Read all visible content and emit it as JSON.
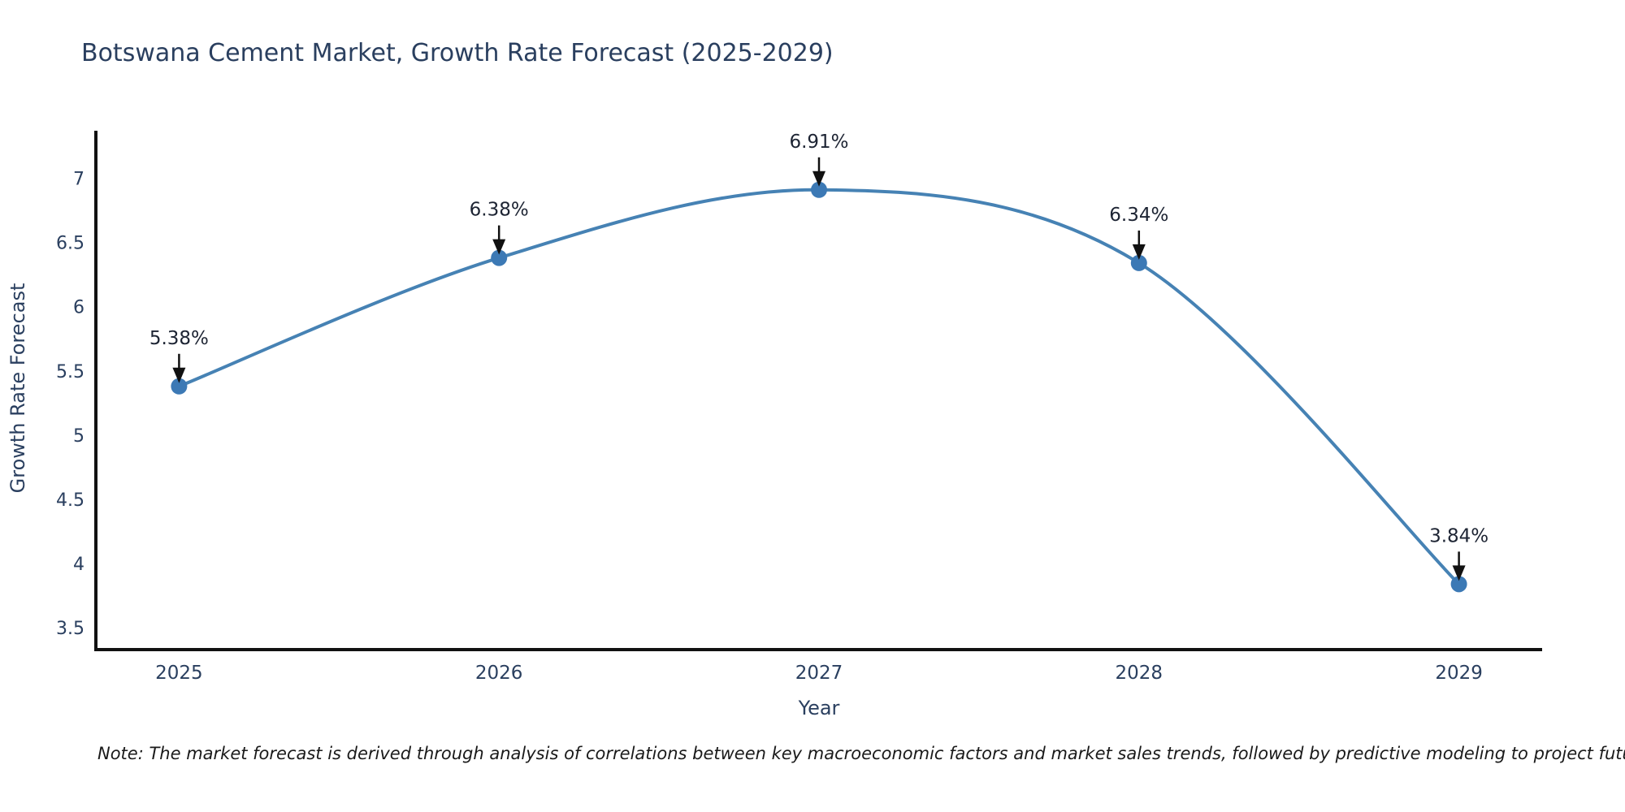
{
  "page": {
    "note": "Note: The market forecast is derived through analysis of correlations between key macroeconomic factors and market sales trends, followed by predictive modeling to project future sales"
  },
  "chart_data": {
    "type": "line",
    "title": "Botswana Cement Market, Growth Rate Forecast (2025-2029)",
    "xlabel": "Year",
    "ylabel": "Growth Rate Forecast",
    "x": [
      2025,
      2026,
      2027,
      2028,
      2029
    ],
    "series": [
      {
        "name": "Growth Rate Forecast",
        "values": [
          5.38,
          6.38,
          6.91,
          6.34,
          3.84
        ]
      }
    ],
    "point_labels": [
      "5.38%",
      "6.38%",
      "6.91%",
      "6.34%",
      "3.84%"
    ],
    "xticks": [
      "2025",
      "2026",
      "2027",
      "2028",
      "2029"
    ],
    "xtick_values": [
      2025,
      2026,
      2027,
      2028,
      2029
    ],
    "yticks": [
      "7",
      "6.5",
      "6",
      "5.5",
      "5",
      "4.5",
      "4",
      "3.5"
    ],
    "ytick_values": [
      7,
      6.5,
      6,
      5.5,
      5,
      4.5,
      4,
      3.5
    ],
    "xlim": [
      2024.74,
      2029.26
    ],
    "ylim": [
      3.33,
      7.37
    ],
    "line_shape": "spline",
    "grid": false,
    "legend": "none",
    "colors": {
      "line": "#4682b4",
      "marker": "#3c79b5",
      "axis": "#111111",
      "text": "#2a3f5f",
      "annotation": "#1d2433",
      "arrow": "#111111",
      "note": "#1a1a1a",
      "background": "#ffffff"
    }
  }
}
